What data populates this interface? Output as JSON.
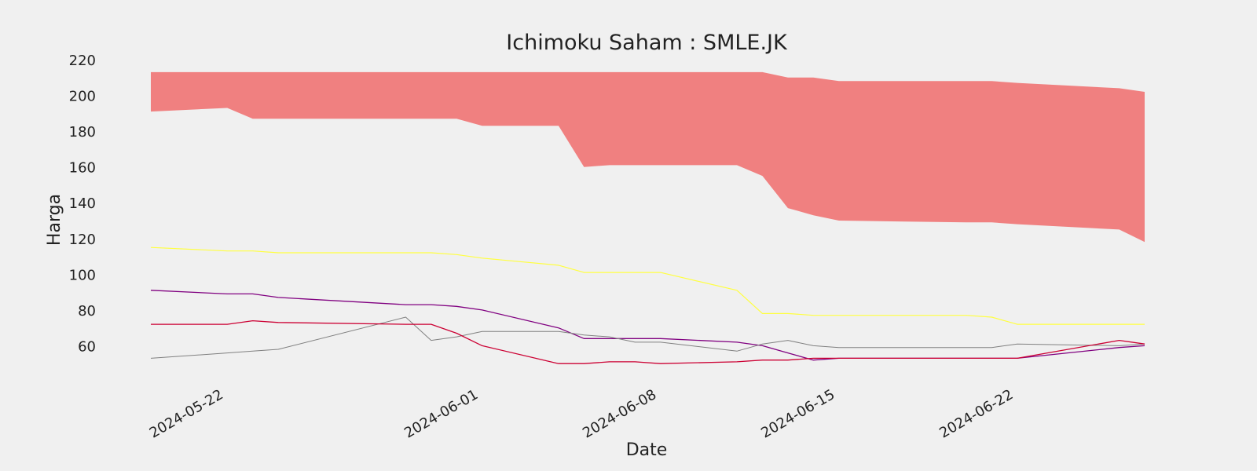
{
  "chart_data": {
    "type": "line",
    "title": "Ichimoku Saham : SMLE.JK",
    "xlabel": "Date",
    "ylabel": "Harga",
    "xlim": [
      "2024-05-19",
      "2024-06-27"
    ],
    "ylim": [
      40,
      220
    ],
    "y_ticks": [
      60,
      80,
      100,
      120,
      140,
      160,
      180,
      200,
      220
    ],
    "x_ticks": [
      "2024-05-22",
      "2024-06-01",
      "2024-06-08",
      "2024-06-15",
      "2024-06-22"
    ],
    "grid": false,
    "legend": "none",
    "x": [
      "2024-05-19",
      "2024-05-22",
      "2024-05-23",
      "2024-05-24",
      "2024-05-29",
      "2024-05-30",
      "2024-05-31",
      "2024-06-01",
      "2024-06-04",
      "2024-06-05",
      "2024-06-06",
      "2024-06-07",
      "2024-06-08",
      "2024-06-11",
      "2024-06-12",
      "2024-06-13",
      "2024-06-14",
      "2024-06-15",
      "2024-06-20",
      "2024-06-21",
      "2024-06-22",
      "2024-06-26",
      "2024-06-27"
    ],
    "cloud": {
      "color": "#f08080",
      "upper": [
        213,
        213,
        213,
        213,
        213,
        213,
        213,
        213,
        213,
        213,
        213,
        213,
        213,
        213,
        213,
        210,
        210,
        208,
        208,
        208,
        207,
        204,
        202
      ],
      "lower": [
        191,
        193,
        187,
        187,
        187,
        187,
        187,
        183,
        183,
        160,
        161,
        161,
        161,
        161,
        155,
        137,
        133,
        130,
        129,
        129,
        128,
        125,
        118
      ]
    },
    "series": [
      {
        "color": "#ffff40",
        "width": 1.2,
        "values": [
          115,
          113,
          113,
          112,
          112,
          112,
          111,
          109,
          105,
          101,
          101,
          101,
          101,
          91,
          78,
          78,
          77,
          77,
          77,
          76,
          72,
          72,
          72
        ]
      },
      {
        "color": "#800080",
        "width": 1.3,
        "values": [
          91,
          89,
          89,
          87,
          83,
          83,
          82,
          80,
          70,
          64,
          64,
          64,
          64,
          62,
          60,
          56,
          52,
          53,
          53,
          53,
          53,
          59,
          60
        ]
      },
      {
        "color": "#808080",
        "width": 1.0,
        "values": [
          53,
          56,
          57,
          58,
          76,
          63,
          65,
          68,
          68,
          66,
          65,
          62,
          62,
          57,
          61,
          63,
          60,
          59,
          59,
          59,
          61,
          60,
          61
        ]
      },
      {
        "color": "#cc0033",
        "width": 1.3,
        "values": [
          72,
          72,
          74,
          73,
          72,
          72,
          67,
          60,
          50,
          50,
          51,
          51,
          50,
          51,
          52,
          52,
          53,
          53,
          53,
          53,
          53,
          63,
          61
        ]
      }
    ]
  }
}
